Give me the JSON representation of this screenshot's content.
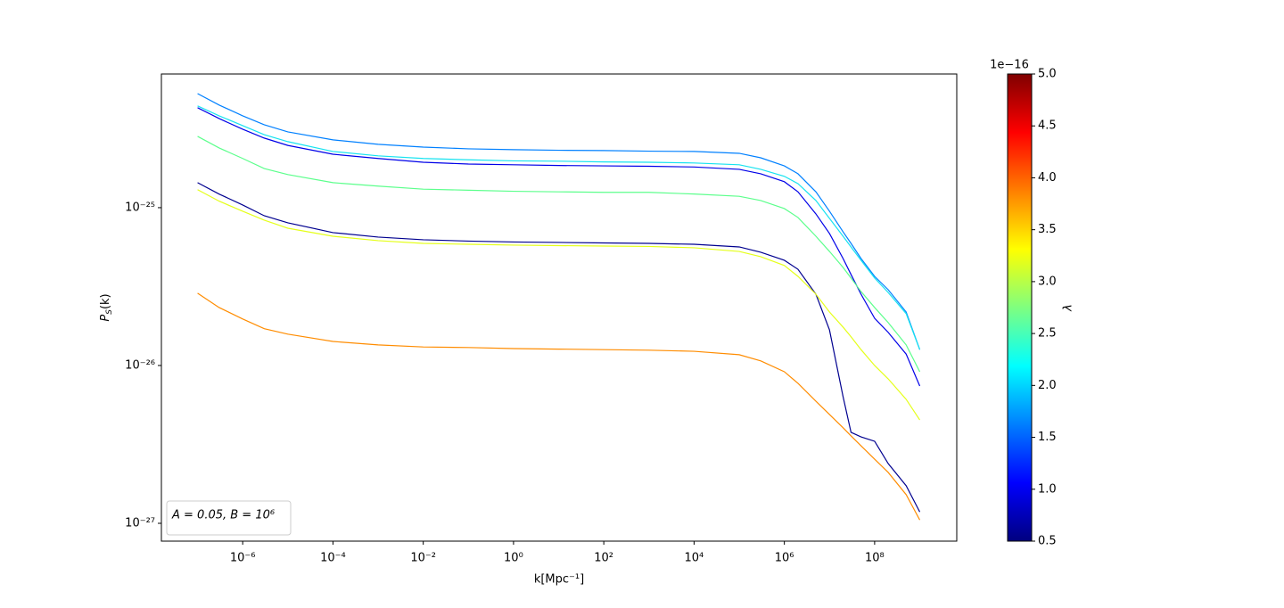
{
  "chart_data": {
    "type": "line",
    "xlabel": "k[Mpc⁻¹]",
    "ylabel": [
      "P",
      "S",
      "(k)"
    ],
    "annotation": "A = 0.05,  B = 10⁶",
    "xscale": "log",
    "yscale": "log",
    "xlim": [
      1.58e-08,
      6600000000.0
    ],
    "ylim": [
      7.71e-28,
      7.03e-25
    ],
    "xticks": [
      {
        "value": 1e-06,
        "label": "10⁻⁶"
      },
      {
        "value": 0.0001,
        "label": "10⁻⁴"
      },
      {
        "value": 0.01,
        "label": "10⁻²"
      },
      {
        "value": 1,
        "label": "10⁰"
      },
      {
        "value": 100,
        "label": "10²"
      },
      {
        "value": 10000,
        "label": "10⁴"
      },
      {
        "value": 1000000,
        "label": "10⁶"
      },
      {
        "value": 100000000,
        "label": "10⁸"
      }
    ],
    "yticks": [
      {
        "value": 1e-25,
        "label": "10⁻²⁵"
      },
      {
        "value": 1e-26,
        "label": "10⁻²⁶"
      },
      {
        "value": 1e-27,
        "label": "10⁻²⁷"
      }
    ],
    "x": [
      1e-07,
      3e-07,
      1e-06,
      3e-06,
      1e-05,
      0.0001,
      0.001,
      0.01,
      0.1,
      1,
      10,
      100,
      1000,
      10000,
      100000,
      300000,
      1000000,
      2000000,
      5000000,
      10000000,
      20000000,
      30000000,
      50000000,
      100000000,
      200000000,
      500000000,
      1000000000
    ],
    "series": [
      {
        "color": "#0080ff",
        "values": [
          5.28e-25,
          4.47e-25,
          3.82e-25,
          3.35e-25,
          3.02e-25,
          2.69e-25,
          2.52e-25,
          2.42e-25,
          2.36e-25,
          2.33e-25,
          2.31e-25,
          2.3e-25,
          2.28e-25,
          2.27e-25,
          2.21e-25,
          2.07e-25,
          1.84e-25,
          1.64e-25,
          1.26e-25,
          9.49e-26,
          7.03e-26,
          5.94e-26,
          4.76e-26,
          3.67e-26,
          3.02e-26,
          2.18e-26,
          1.26e-26
        ]
      },
      {
        "color": "#16e3f0",
        "values": [
          4.41e-25,
          3.82e-25,
          3.31e-25,
          2.9e-25,
          2.62e-25,
          2.27e-25,
          2.13e-25,
          2.05e-25,
          2.01e-25,
          1.98e-25,
          1.97e-25,
          1.95e-25,
          1.94e-25,
          1.92e-25,
          1.87e-25,
          1.75e-25,
          1.58e-25,
          1.42e-25,
          1.11e-25,
          8.55e-26,
          6.59e-26,
          5.64e-26,
          4.64e-26,
          3.58e-26,
          2.9e-26,
          2.13e-26,
          1.26e-26
        ]
      },
      {
        "color": "#0000e8",
        "values": [
          4.3e-25,
          3.67e-25,
          3.14e-25,
          2.76e-25,
          2.48e-25,
          2.18e-25,
          2.05e-25,
          1.94e-25,
          1.89e-25,
          1.87e-25,
          1.85e-25,
          1.84e-25,
          1.83e-25,
          1.81e-25,
          1.75e-25,
          1.64e-25,
          1.46e-25,
          1.26e-25,
          9.13e-26,
          6.86e-26,
          4.76e-26,
          3.77e-26,
          2.83e-26,
          1.99e-26,
          1.62e-26,
          1.18e-26,
          7.41e-27
        ]
      },
      {
        "color": "#5cff8c",
        "values": [
          2.83e-25,
          2.39e-25,
          2.05e-25,
          1.77e-25,
          1.62e-25,
          1.44e-25,
          1.37e-25,
          1.31e-25,
          1.29e-25,
          1.27e-25,
          1.26e-25,
          1.25e-25,
          1.25e-25,
          1.22e-25,
          1.18e-25,
          1.11e-25,
          9.87e-26,
          8.67e-26,
          6.59e-26,
          5.28e-26,
          4.18e-26,
          3.58e-26,
          2.94e-26,
          2.33e-26,
          1.87e-26,
          1.35e-26,
          9.13e-27
        ]
      },
      {
        "color": "#00008f",
        "values": [
          1.44e-25,
          1.22e-25,
          1.04e-25,
          8.89e-26,
          8.02e-26,
          6.95e-26,
          6.51e-26,
          6.26e-26,
          6.14e-26,
          6.06e-26,
          6.02e-26,
          5.98e-26,
          5.94e-26,
          5.86e-26,
          5.64e-26,
          5.22e-26,
          4.64e-26,
          4.07e-26,
          2.83e-26,
          1.68e-26,
          6.34e-27,
          3.77e-27,
          3.53e-27,
          3.31e-27,
          2.39e-27,
          1.73e-27,
          1.18e-27
        ]
      },
      {
        "color": "#e5ff1a",
        "values": [
          1.3e-25,
          1.1e-25,
          9.49e-26,
          8.34e-26,
          7.41e-26,
          6.59e-26,
          6.18e-26,
          5.94e-26,
          5.86e-26,
          5.79e-26,
          5.75e-26,
          5.71e-26,
          5.68e-26,
          5.57e-26,
          5.28e-26,
          4.89e-26,
          4.3e-26,
          3.67e-26,
          2.83e-26,
          2.18e-26,
          1.75e-26,
          1.52e-26,
          1.26e-26,
          1e-26,
          8.22e-27,
          6.1e-27,
          4.52e-27
        ]
      },
      {
        "color": "#ff8c00",
        "values": [
          2.87e-26,
          2.33e-26,
          1.97e-26,
          1.71e-26,
          1.58e-26,
          1.42e-26,
          1.35e-26,
          1.31e-26,
          1.3e-26,
          1.28e-26,
          1.27e-26,
          1.26e-26,
          1.25e-26,
          1.23e-26,
          1.17e-26,
          1.07e-26,
          9.13e-27,
          7.71e-27,
          5.94e-27,
          4.89e-27,
          4.03e-27,
          3.58e-27,
          3.1e-27,
          2.55e-27,
          2.1e-27,
          1.52e-27,
          1.05e-27
        ]
      }
    ],
    "colorbar": {
      "colormap": "jet",
      "label": "λ",
      "offset": "1e−16",
      "clim": [
        0.5,
        5.0
      ],
      "ticks": [
        0.5,
        {
          "value": 1.0,
          "label": "1.0"
        },
        1.5,
        {
          "value": 2.0,
          "label": "2.0"
        },
        2.5,
        {
          "value": 3.0,
          "label": "3.0"
        },
        3.5,
        {
          "value": 4.0,
          "label": "4.0"
        },
        4.5,
        {
          "value": 5.0,
          "label": "5.0"
        }
      ]
    }
  }
}
